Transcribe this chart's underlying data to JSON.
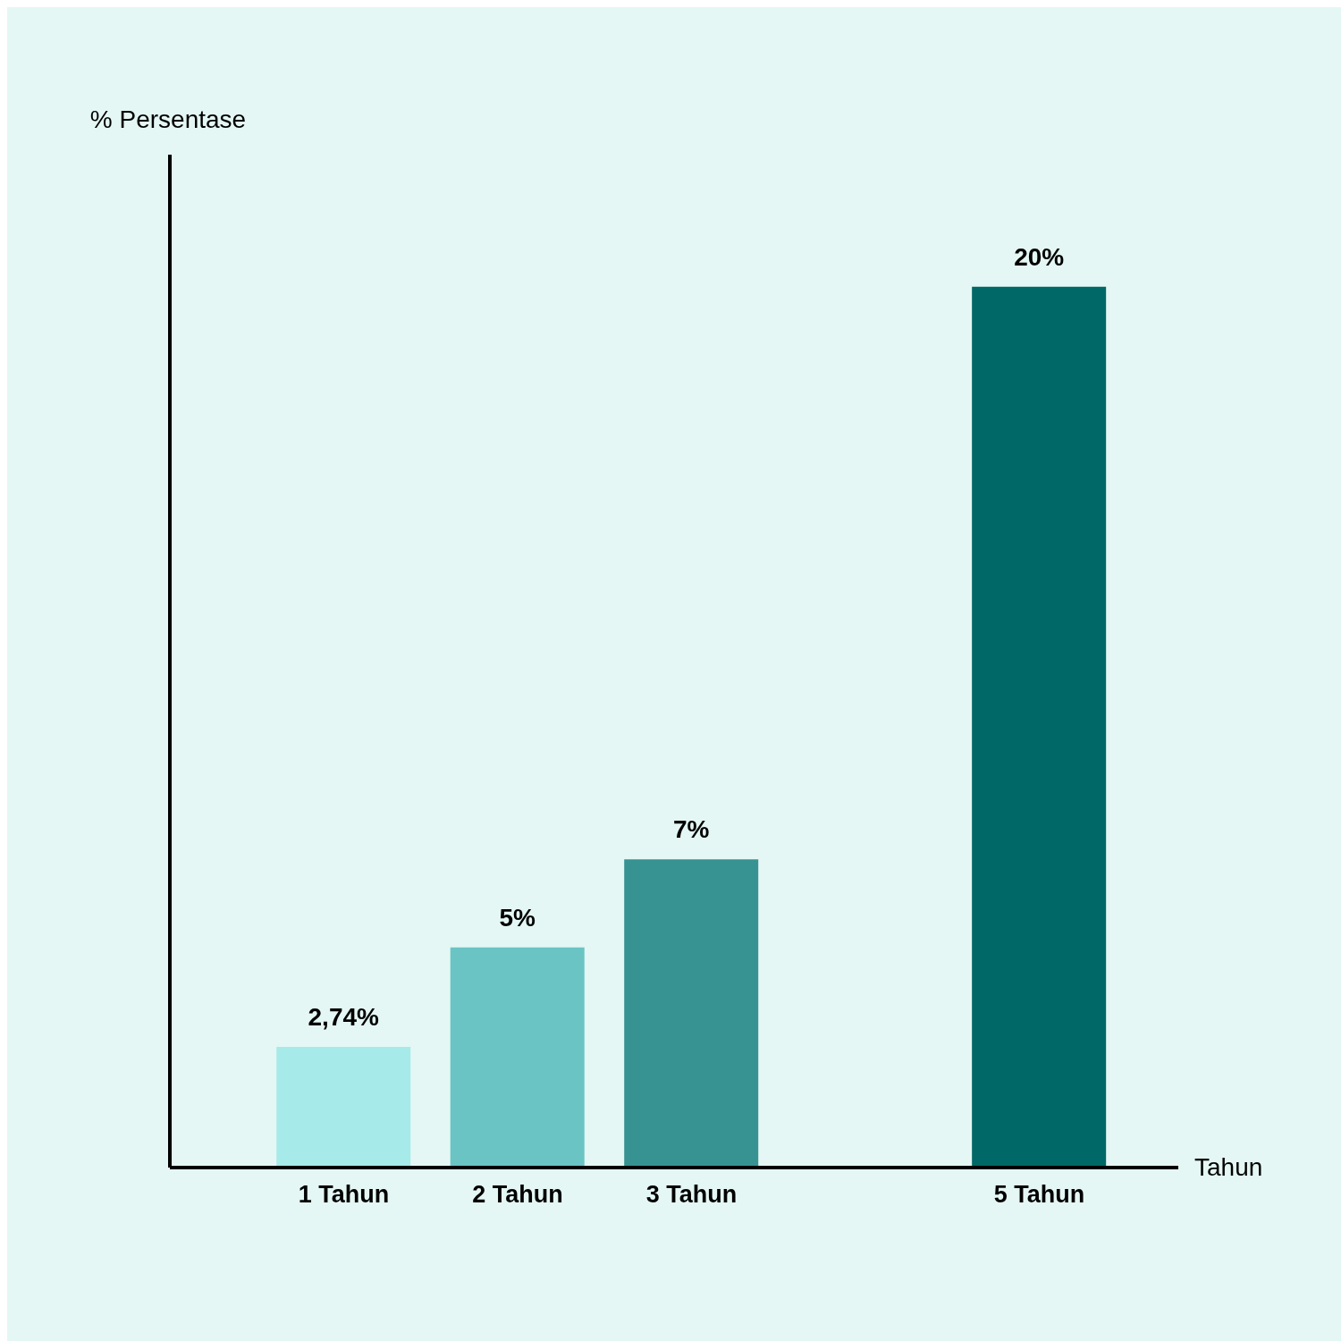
{
  "chart_data": {
    "type": "bar",
    "xlabel": "Tahun",
    "annotations": [
      "% Persentase"
    ],
    "x": [
      1,
      2,
      3,
      5
    ],
    "values": [
      2.74,
      5,
      7,
      20
    ],
    "colors": [
      "#a6eae9",
      "#6ac4c4",
      "#369392",
      "#006866"
    ],
    "value_labels": [
      "2,74%",
      "5%",
      "7%",
      "20%"
    ],
    "xlim": [
      0,
      5.8
    ],
    "xticks": [
      {
        "value": 1,
        "label": "1 Tahun"
      },
      {
        "value": 2,
        "label": "2 Tahun"
      },
      {
        "value": 3,
        "label": "3 Tahun"
      },
      {
        "value": 5,
        "label": "5 Tahun"
      }
    ],
    "grid": false,
    "legend": false
  }
}
